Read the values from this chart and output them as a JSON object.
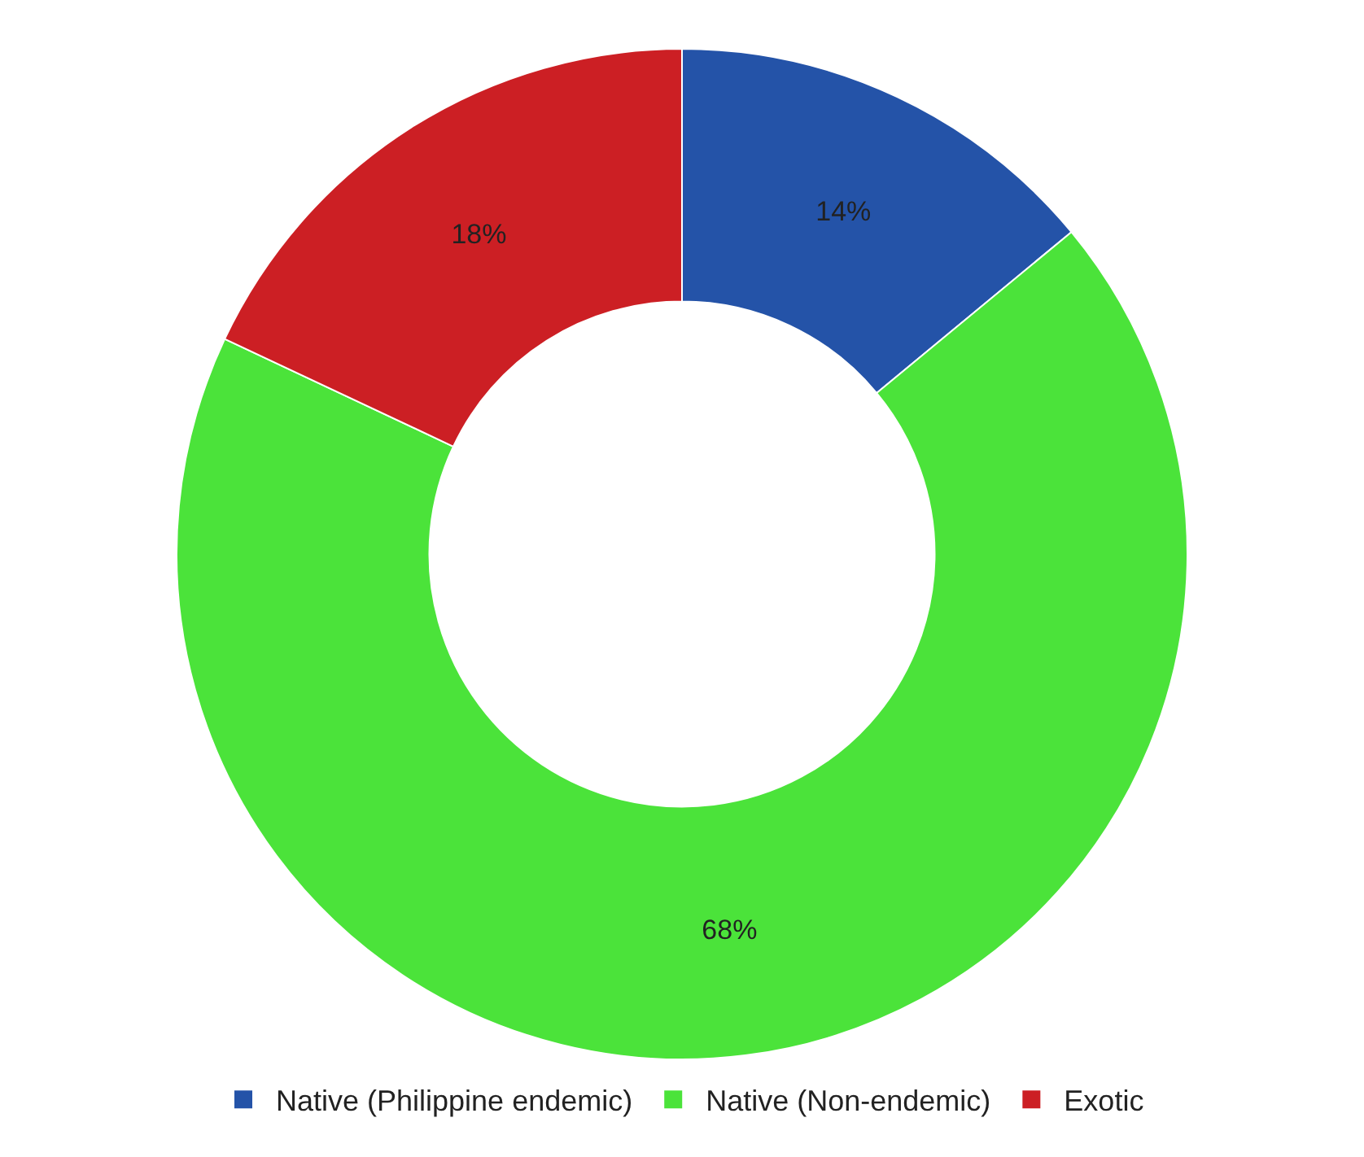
{
  "chart_data": {
    "type": "donut",
    "categories": [
      "Native (Philippine endemic)",
      "Native (Non-endemic)",
      "Exotic"
    ],
    "values": [
      14,
      68,
      18
    ],
    "colors": [
      "#2453a8",
      "#4be33a",
      "#cc1f24"
    ],
    "value_labels": [
      "14%",
      "68%",
      "18%"
    ],
    "legend": "bottom"
  }
}
